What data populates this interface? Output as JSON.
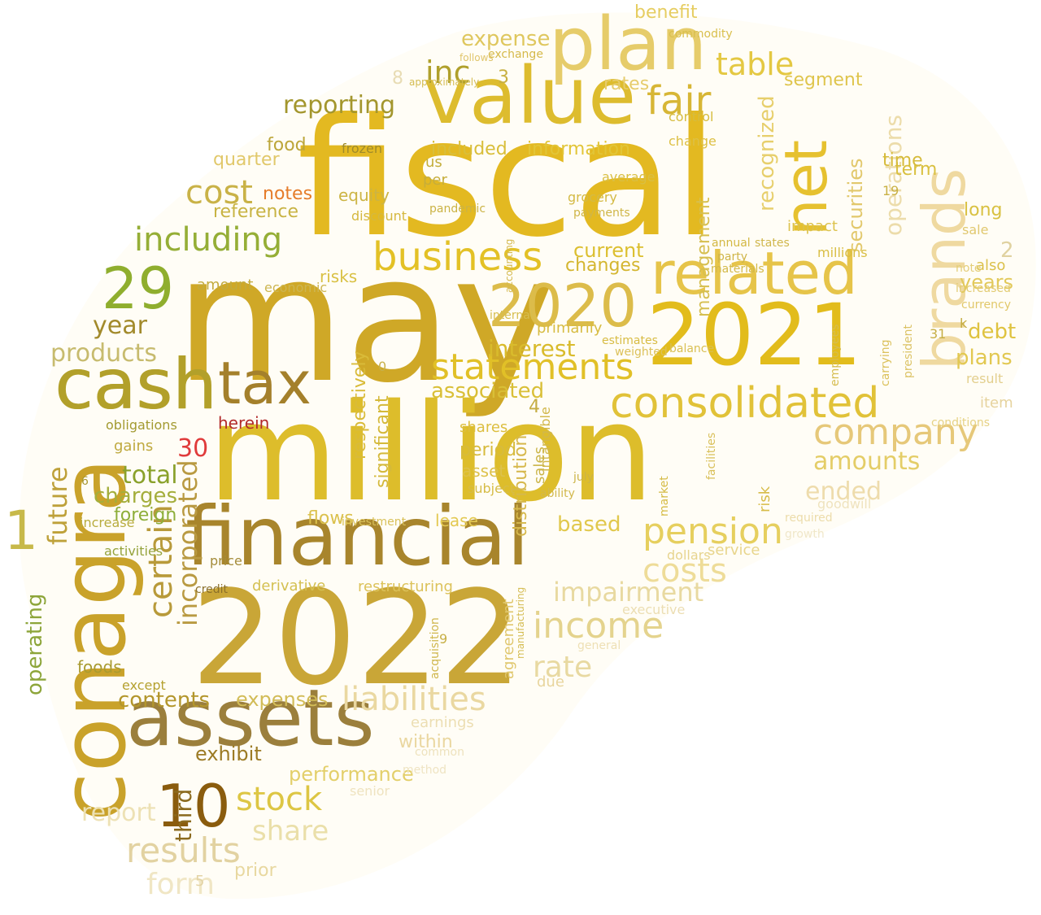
{
  "palette": {
    "gold": "#d4b12a",
    "dark_gold": "#a8871f",
    "olive": "#8fae2e",
    "brown": "#8b6a1e",
    "red": "#e03b3b",
    "orange": "#e57c2a",
    "pale": "#e8d9a6",
    "yellow": "#e6c12f"
  },
  "words": [
    {
      "text": "may",
      "color": "#cfa827"
    },
    {
      "text": "fiscal",
      "color": "#e3b921"
    },
    {
      "text": "million",
      "color": "#ddbd2b"
    },
    {
      "text": "2022",
      "color": "#c9a637"
    },
    {
      "text": "conagra",
      "color": "#c9a22a"
    },
    {
      "text": "financial",
      "color": "#a8852c"
    },
    {
      "text": "assets",
      "color": "#9b7f3c"
    },
    {
      "text": "value",
      "color": "#ddbc2e"
    },
    {
      "text": "plan",
      "color": "#e6cc6a"
    },
    {
      "text": "net",
      "color": "#e6c12f"
    },
    {
      "text": "brands",
      "color": "#efd9a0"
    },
    {
      "text": "2021",
      "color": "#e2bc1c"
    },
    {
      "text": "related",
      "color": "#e6c449"
    },
    {
      "text": "2020",
      "color": "#dcbc4a"
    },
    {
      "text": "cash",
      "color": "#b2a02a"
    },
    {
      "text": "tax",
      "color": "#a4802b"
    },
    {
      "text": "consolidated",
      "color": "#e1c238"
    },
    {
      "text": "29",
      "color": "#8fae2e"
    },
    {
      "text": "10",
      "color": "#8a5c0e"
    },
    {
      "text": "1",
      "color": "#c7b94a"
    },
    {
      "text": "income",
      "color": "#e4d38d"
    },
    {
      "text": "business",
      "color": "#e3c126"
    },
    {
      "text": "statements",
      "color": "#e1c027"
    },
    {
      "text": "company",
      "color": "#e6c879"
    },
    {
      "text": "pension",
      "color": "#e6cf5e"
    },
    {
      "text": "including",
      "color": "#95ae36"
    },
    {
      "text": "cost",
      "color": "#c9b247"
    },
    {
      "text": "costs",
      "color": "#eedc98"
    },
    {
      "text": "impairment",
      "color": "#e8d9a0"
    },
    {
      "text": "liabilities",
      "color": "#ead8a1"
    },
    {
      "text": "results",
      "color": "#e2d2a1"
    },
    {
      "text": "stock",
      "color": "#ddc644"
    },
    {
      "text": "share",
      "color": "#eadfa9"
    },
    {
      "text": "certain",
      "color": "#b89a3a"
    },
    {
      "text": "incorporated",
      "color": "#b99a42"
    },
    {
      "text": "operating",
      "color": "#8da53a"
    },
    {
      "text": "future",
      "color": "#bea13a"
    },
    {
      "text": "fair",
      "color": "#d7b635"
    },
    {
      "text": "inc",
      "color": "#b0a02c"
    },
    {
      "text": "table",
      "color": "#e4c842"
    },
    {
      "text": "expense",
      "color": "#dfc75e"
    },
    {
      "text": "reporting",
      "color": "#a3962d"
    },
    {
      "text": "cash",
      "color": "#b2a02a"
    },
    {
      "text": "products",
      "color": "#c7bb6e"
    },
    {
      "text": "year",
      "color": "#a28a2b"
    },
    {
      "text": "total",
      "color": "#8aa12b"
    },
    {
      "text": "charges",
      "color": "#a4ae3c"
    },
    {
      "text": "foreign",
      "color": "#8dae3a"
    },
    {
      "text": "contents",
      "color": "#b3962c"
    },
    {
      "text": "exhibit",
      "color": "#9c7b25"
    },
    {
      "text": "performance",
      "color": "#e3cf6a"
    },
    {
      "text": "expenses",
      "color": "#d2bc57"
    },
    {
      "text": "ended",
      "color": "#eedcac"
    },
    {
      "text": "amounts",
      "color": "#e4cd67"
    },
    {
      "text": "debt",
      "color": "#dfc340"
    },
    {
      "text": "plans",
      "color": "#e2c851"
    },
    {
      "text": "years",
      "color": "#e2c95a"
    },
    {
      "text": "rate",
      "color": "#e8d9a1"
    },
    {
      "text": "notes",
      "color": "#e57c2a"
    },
    {
      "text": "herein",
      "color": "#b22a2a"
    },
    {
      "text": "30",
      "color": "#e03b3b"
    },
    {
      "text": "interest",
      "color": "#d9bb2c"
    },
    {
      "text": "third",
      "color": "#8b6a1e"
    },
    {
      "text": "report",
      "color": "#ede1b4"
    },
    {
      "text": "form",
      "color": "#f0e6c4"
    },
    {
      "text": "prior",
      "color": "#e8d8a0"
    },
    {
      "text": "associated",
      "color": "#d9bf37"
    },
    {
      "text": "current",
      "color": "#dcbf30"
    },
    {
      "text": "changes",
      "color": "#d4b630"
    },
    {
      "text": "information",
      "color": "#e2c537"
    },
    {
      "text": "included",
      "color": "#d9be3a"
    },
    {
      "text": "recognized",
      "color": "#e7cf6c"
    },
    {
      "text": "operations",
      "color": "#ecdcaa"
    },
    {
      "text": "securities",
      "color": "#e2c86c"
    },
    {
      "text": "management",
      "color": "#d6bf50"
    },
    {
      "text": "significant",
      "color": "#d4b93a"
    },
    {
      "text": "respectively",
      "color": "#d9bb39"
    },
    {
      "text": "distribution",
      "color": "#d6b84c"
    },
    {
      "text": "segment",
      "color": "#dfc54d"
    },
    {
      "text": "benefit",
      "color": "#e6cd61"
    },
    {
      "text": "rates",
      "color": "#e6cc6c"
    },
    {
      "text": "food",
      "color": "#bca63a"
    },
    {
      "text": "quarter",
      "color": "#e1c86a"
    },
    {
      "text": "reference",
      "color": "#c8b343"
    },
    {
      "text": "amount",
      "color": "#c2ab3e"
    },
    {
      "text": "risks",
      "color": "#d9c043"
    },
    {
      "text": "economic",
      "color": "#cdb652"
    },
    {
      "text": "equity",
      "color": "#ccb444"
    },
    {
      "text": "discount",
      "color": "#d5b83f"
    },
    {
      "text": "frozen",
      "color": "#9f8b2a"
    },
    {
      "text": "period",
      "color": "#d7bb3c"
    },
    {
      "text": "asset",
      "color": "#ddc14a"
    },
    {
      "text": "shares",
      "color": "#dcbe3f"
    },
    {
      "text": "subject",
      "color": "#d6bc47"
    },
    {
      "text": "lease",
      "color": "#e3c952"
    },
    {
      "text": "flows",
      "color": "#dbc14d"
    },
    {
      "text": "based",
      "color": "#e1c84c"
    },
    {
      "text": "agreement",
      "color": "#e0c76e"
    },
    {
      "text": "restructuring",
      "color": "#dcc25a"
    },
    {
      "text": "derivative",
      "color": "#d4c052"
    },
    {
      "text": "gains",
      "color": "#bfa93f"
    },
    {
      "text": "obligations",
      "color": "#a39a31"
    },
    {
      "text": "increase",
      "color": "#b8ac3e"
    },
    {
      "text": "activities",
      "color": "#95a33d"
    },
    {
      "text": "foods",
      "color": "#a99b30"
    },
    {
      "text": "except",
      "color": "#b5a130"
    },
    {
      "text": "price",
      "color": "#a48c3a"
    },
    {
      "text": "credit",
      "color": "#8a6f2a"
    },
    {
      "text": "within",
      "color": "#ead7a0"
    },
    {
      "text": "earnings",
      "color": "#ecdeb2"
    },
    {
      "text": "due",
      "color": "#e8d59d"
    },
    {
      "text": "service",
      "color": "#e8d58c"
    },
    {
      "text": "dollars",
      "color": "#e7d48f"
    },
    {
      "text": "executive",
      "color": "#ecdeb3"
    },
    {
      "text": "general",
      "color": "#eee0b5"
    },
    {
      "text": "senior",
      "color": "#efe3bf"
    },
    {
      "text": "common",
      "color": "#eee2bd"
    },
    {
      "text": "method",
      "color": "#efe4c3"
    },
    {
      "text": "goodwill",
      "color": "#efe3be"
    },
    {
      "text": "growth",
      "color": "#f0e7c9"
    },
    {
      "text": "required",
      "color": "#ecdcaa"
    },
    {
      "text": "item",
      "color": "#e6d39e"
    },
    {
      "text": "result",
      "color": "#e3cf8e"
    },
    {
      "text": "long",
      "color": "#d9c142"
    },
    {
      "text": "term",
      "color": "#d9c03f"
    },
    {
      "text": "time",
      "color": "#d6bb3b"
    },
    {
      "text": "sale",
      "color": "#e1c86f"
    },
    {
      "text": "also",
      "color": "#dbc14c"
    },
    {
      "text": "note",
      "color": "#e4ce79"
    },
    {
      "text": "increased",
      "color": "#e2cb72"
    },
    {
      "text": "currency",
      "color": "#e1c86a"
    },
    {
      "text": "impact",
      "color": "#dcc24c"
    },
    {
      "text": "millions",
      "color": "#d9be44"
    },
    {
      "text": "annual",
      "color": "#d3b843"
    },
    {
      "text": "states",
      "color": "#d0b74d"
    },
    {
      "text": "party",
      "color": "#cfb548"
    },
    {
      "text": "materials",
      "color": "#d3b94a"
    },
    {
      "text": "estimates",
      "color": "#d8bc44"
    },
    {
      "text": "weighted",
      "color": "#dcc15a"
    },
    {
      "text": "balance",
      "color": "#d9bf52"
    },
    {
      "text": "average",
      "color": "#d9bf43"
    },
    {
      "text": "grocery",
      "color": "#d4ba45"
    },
    {
      "text": "payments",
      "color": "#cfb648"
    },
    {
      "text": "change",
      "color": "#ddc045"
    },
    {
      "text": "control",
      "color": "#d6bc3e"
    },
    {
      "text": "commodity",
      "color": "#d9bf4d"
    },
    {
      "text": "exchange",
      "color": "#d5b94a"
    },
    {
      "text": "follows",
      "color": "#e0c56b"
    },
    {
      "text": "approximately",
      "color": "#d4bc52"
    },
    {
      "text": "us",
      "color": "#c4ae3c"
    },
    {
      "text": "per",
      "color": "#c6ad3a"
    },
    {
      "text": "pandemic",
      "color": "#cbb345"
    },
    {
      "text": "primarily",
      "color": "#d7bc42"
    },
    {
      "text": "internal",
      "color": "#d6bd4f"
    },
    {
      "text": "sales",
      "color": "#cbb54a"
    },
    {
      "text": "intangible",
      "color": "#d1b74b"
    },
    {
      "text": "investment",
      "color": "#d9c15a"
    },
    {
      "text": "acquisition",
      "color": "#cfb64c"
    },
    {
      "text": "manufacturing",
      "color": "#d5bd54"
    },
    {
      "text": "accounting",
      "color": "#d4b94f"
    },
    {
      "text": "ability",
      "color": "#d2b84d"
    },
    {
      "text": "july",
      "color": "#ccb447"
    },
    {
      "text": "market",
      "color": "#d5bb45"
    },
    {
      "text": "risk",
      "color": "#d7bc49"
    },
    {
      "text": "facilities",
      "color": "#d9c05b"
    },
    {
      "text": "employees",
      "color": "#d6bd50"
    },
    {
      "text": "carrying",
      "color": "#dbc15c"
    },
    {
      "text": "president",
      "color": "#dcc366"
    },
    {
      "text": "conditions",
      "color": "#e6d285"
    },
    {
      "text": "k",
      "color": "#c3ab3f"
    },
    {
      "text": "31",
      "color": "#c6ae45"
    },
    {
      "text": "19",
      "color": "#c9b145"
    },
    {
      "text": "2",
      "color": "#e0d2a0"
    },
    {
      "text": "3",
      "color": "#c8b042"
    },
    {
      "text": "4",
      "color": "#c5ad42"
    },
    {
      "text": "5",
      "color": "#e3d3a5"
    },
    {
      "text": "6",
      "color": "#a8962f"
    },
    {
      "text": "8",
      "color": "#e8dcb4"
    },
    {
      "text": "9",
      "color": "#c7af46"
    },
    {
      "text": "0",
      "color": "#c7b04a"
    }
  ]
}
